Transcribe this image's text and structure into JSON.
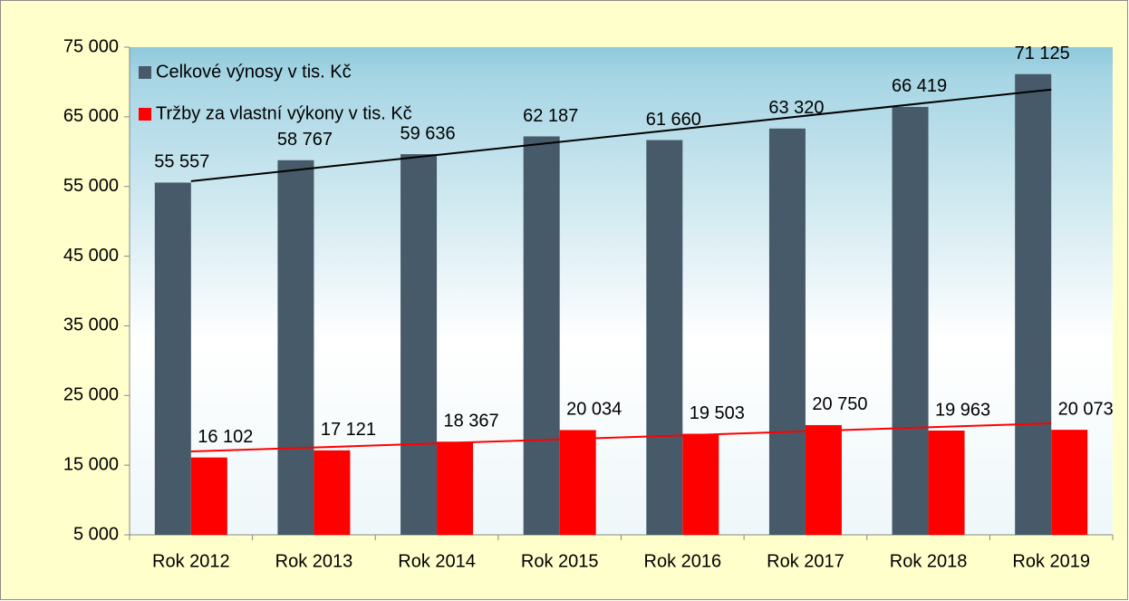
{
  "chart_data": {
    "type": "bar",
    "categories": [
      "Rok 2012",
      "Rok 2013",
      "Rok 2014",
      "Rok 2015",
      "Rok 2016",
      "Rok 2017",
      "Rok 2018",
      "Rok 2019"
    ],
    "series": [
      {
        "name": "Celkové výnosy v tis. Kč",
        "color": "#465a69",
        "trend_color": "#000000",
        "values": [
          55557,
          58767,
          59636,
          62187,
          61660,
          63320,
          66419,
          71125
        ],
        "value_labels": [
          "55 557",
          "58 767",
          "59 636",
          "62 187",
          "61 660",
          "63 320",
          "66 419",
          "71 125"
        ]
      },
      {
        "name": "Tržby za vlastní výkony v tis. Kč",
        "color": "#ff0000",
        "trend_color": "#ff0000",
        "values": [
          16102,
          17121,
          18367,
          20034,
          19503,
          20750,
          19963,
          20073
        ],
        "value_labels": [
          "16 102",
          "17 121",
          "18 367",
          "20 034",
          "19 503",
          "20 750",
          "19 963",
          "20 073"
        ]
      }
    ],
    "ylim": [
      5000,
      75000
    ],
    "yticks": [
      {
        "value": 5000,
        "label": "5 000"
      },
      {
        "value": 15000,
        "label": "15 000"
      },
      {
        "value": 25000,
        "label": "25 000"
      },
      {
        "value": 35000,
        "label": "35 000"
      },
      {
        "value": 45000,
        "label": "45 000"
      },
      {
        "value": 55000,
        "label": "55 000"
      },
      {
        "value": 65000,
        "label": "65 000"
      },
      {
        "value": 75000,
        "label": "75 000"
      }
    ],
    "trendline": true,
    "legend": "upper left"
  }
}
